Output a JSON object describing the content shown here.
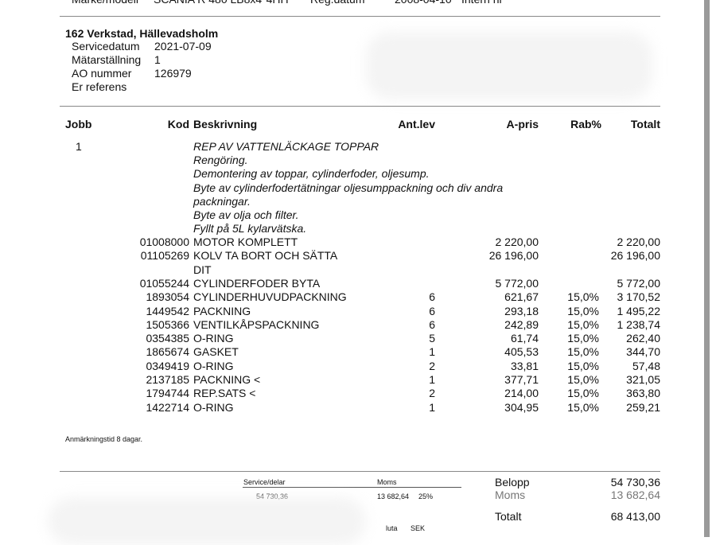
{
  "top_row": {
    "label1": "Märke/modell",
    "model": "SCANIA R 480 LB8x4*4HH",
    "label2": "Reg.datum",
    "reg_date": "2008-04-10",
    "label3": "Intern nr"
  },
  "workshop": {
    "name": "162 Verkstad, Hällevadsholm",
    "fields": [
      {
        "label": "Servicedatum",
        "value": "2021-07-09"
      },
      {
        "label": "Mätarställning",
        "value": "1"
      },
      {
        "label": "AO nummer",
        "value": "126979"
      },
      {
        "label": "Er referens",
        "value": ""
      }
    ]
  },
  "table": {
    "headers": {
      "jobb": "Jobb",
      "kod": "Kod",
      "beskrivning": "Beskrivning",
      "antlev": "Ant.lev",
      "apris": "A-pris",
      "rab": "Rab%",
      "totalt": "Totalt"
    },
    "job": "1",
    "job_text": [
      "REP AV VATTENLÄCKAGE TOPPAR",
      "Rengöring.",
      "Demontering av toppar, cylinderfoder, oljesump.",
      "Byte av cylinderfodertätningar oljesumppackning och div andra",
      "packningar.",
      "Byte av olja och filter.",
      "Fyllt på 5L kylarvätska."
    ],
    "rows": [
      {
        "kod": "01008000",
        "desc": "MOTOR KOMPLETT",
        "desc2": "",
        "ant": "",
        "apris": "2 220,00",
        "rab": "",
        "totalt": "2 220,00"
      },
      {
        "kod": "01105269",
        "desc": "KOLV TA BORT OCH SÄTTA",
        "desc2": "DIT",
        "ant": "",
        "apris": "26 196,00",
        "rab": "",
        "totalt": "26 196,00"
      },
      {
        "kod": "01055244",
        "desc": "CYLINDERFODER BYTA",
        "desc2": "",
        "ant": "",
        "apris": "5 772,00",
        "rab": "",
        "totalt": "5 772,00"
      },
      {
        "kod": "1893054",
        "desc": "CYLINDERHUVUDPACKNING",
        "desc2": "",
        "ant": "6",
        "apris": "621,67",
        "rab": "15,0%",
        "totalt": "3 170,52"
      },
      {
        "kod": "1449542",
        "desc": "PACKNING",
        "desc2": "",
        "ant": "6",
        "apris": "293,18",
        "rab": "15,0%",
        "totalt": "1 495,22"
      },
      {
        "kod": "1505366",
        "desc": "VENTILKÅPSPACKNING",
        "desc2": "",
        "ant": "6",
        "apris": "242,89",
        "rab": "15,0%",
        "totalt": "1 238,74"
      },
      {
        "kod": "0354385",
        "desc": "O-RING",
        "desc2": "",
        "ant": "5",
        "apris": "61,74",
        "rab": "15,0%",
        "totalt": "262,40"
      },
      {
        "kod": "1865674",
        "desc": "GASKET",
        "desc2": "",
        "ant": "1",
        "apris": "405,53",
        "rab": "15,0%",
        "totalt": "344,70"
      },
      {
        "kod": "0349419",
        "desc": "O-RING",
        "desc2": "",
        "ant": "2",
        "apris": "33,81",
        "rab": "15,0%",
        "totalt": "57,48"
      },
      {
        "kod": "2137185",
        "desc": "PACKNING <",
        "desc2": "",
        "ant": "1",
        "apris": "377,71",
        "rab": "15,0%",
        "totalt": "321,05"
      },
      {
        "kod": "1794744",
        "desc": "REP.SATS <",
        "desc2": "",
        "ant": "2",
        "apris": "214,00",
        "rab": "15,0%",
        "totalt": "363,80"
      },
      {
        "kod": "1422714",
        "desc": "O-RING",
        "desc2": "",
        "ant": "1",
        "apris": "304,95",
        "rab": "15,0%",
        "totalt": "259,21"
      }
    ]
  },
  "note": "Anmärkningstid 8 dagar.",
  "summary": {
    "service_label": "Service/delar",
    "service_value": "54 730,36",
    "moms_label": "Moms",
    "moms_value": "13 682,64",
    "moms_rate": "25%",
    "belopp_label": "Belopp",
    "belopp": "54 730,36",
    "moms2_label": "Moms",
    "moms2": "13 682,64",
    "totalt_label": "Totalt",
    "totalt": "68 413,00",
    "valuta_label": "luta",
    "valuta": "SEK"
  }
}
